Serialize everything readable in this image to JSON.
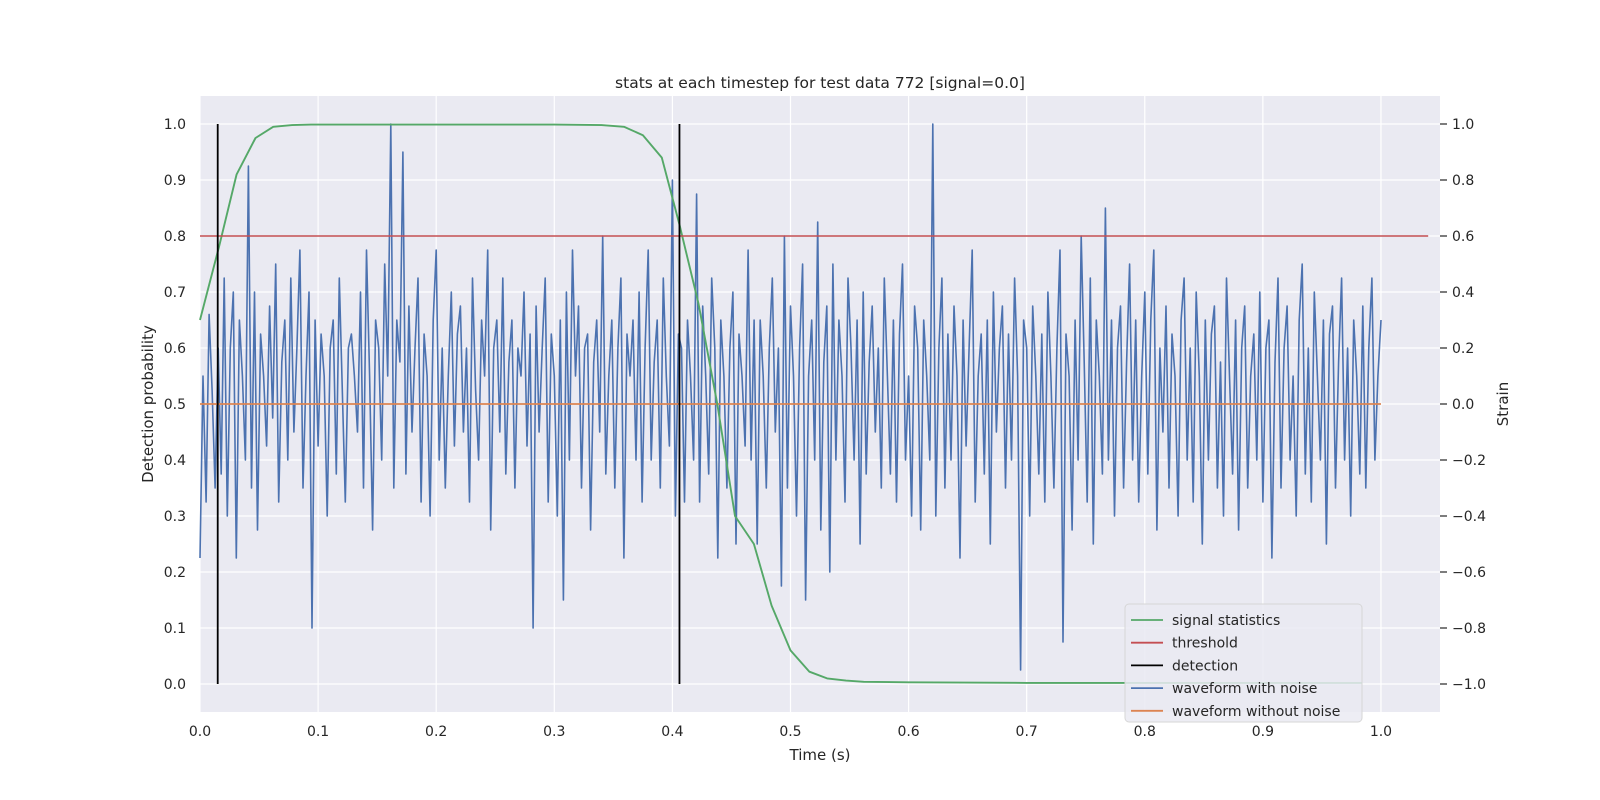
{
  "chart_data": {
    "type": "line",
    "title": "stats at each timestep for test data 772 [signal=0.0]",
    "xlabel": "Time (s)",
    "ylabel_left": "Detection probability",
    "ylabel_right": "Strain",
    "xlim": [
      0.0,
      1.05
    ],
    "ylim_left": [
      -0.05,
      1.05
    ],
    "ylim_right": [
      -1.1,
      1.1
    ],
    "x_ticks": [
      "0.0",
      "0.1",
      "0.2",
      "0.3",
      "0.4",
      "0.5",
      "0.6",
      "0.7",
      "0.8",
      "0.9",
      "1.0"
    ],
    "y_ticks_left": [
      "0.0",
      "0.1",
      "0.2",
      "0.3",
      "0.4",
      "0.5",
      "0.6",
      "0.7",
      "0.8",
      "0.9",
      "1.0"
    ],
    "y_ticks_right": [
      "−1.0",
      "−0.8",
      "−0.6",
      "−0.4",
      "−0.2",
      "0.0",
      "0.2",
      "0.4",
      "0.6",
      "0.8",
      "1.0"
    ],
    "grid": true,
    "legend_position": "lower-right",
    "colors": {
      "signal_statistics": "#55a868",
      "threshold": "#c44e52",
      "detection": "#000000",
      "waveform_with_noise": "#4c72b0",
      "waveform_without_noise": "#dd8452",
      "plot_background": "#eaeaf2",
      "grid": "#ffffff"
    },
    "series": [
      {
        "name": "signal statistics",
        "axis": "left",
        "x": [
          0.0,
          0.016,
          0.031,
          0.047,
          0.062,
          0.078,
          0.094,
          0.109,
          0.125,
          0.15,
          0.2,
          0.25,
          0.3,
          0.34,
          0.359,
          0.375,
          0.391,
          0.406,
          0.422,
          0.438,
          0.453,
          0.469,
          0.484,
          0.5,
          0.516,
          0.531,
          0.547,
          0.562,
          0.6,
          0.7,
          0.8,
          0.9,
          0.984
        ],
        "values": [
          0.65,
          0.78,
          0.91,
          0.975,
          0.995,
          0.998,
          0.999,
          0.999,
          0.999,
          0.999,
          0.999,
          0.999,
          0.999,
          0.998,
          0.995,
          0.98,
          0.94,
          0.82,
          0.68,
          0.5,
          0.3,
          0.25,
          0.14,
          0.06,
          0.022,
          0.01,
          0.006,
          0.004,
          0.003,
          0.002,
          0.002,
          0.002,
          0.002
        ]
      },
      {
        "name": "threshold",
        "axis": "left",
        "x": [
          0.0,
          1.04
        ],
        "values": [
          0.8,
          0.8
        ]
      },
      {
        "name": "detection",
        "axis": "left",
        "x": [
          0.015,
          0.406
        ],
        "values": [
          1.0,
          1.0
        ]
      },
      {
        "name": "waveform with noise",
        "axis": "right",
        "x_range": [
          0.0,
          1.0
        ],
        "values": [
          -0.55,
          0.1,
          -0.35,
          0.32,
          0.05,
          -0.3,
          0.2,
          -0.25,
          0.45,
          -0.4,
          0.2,
          0.4,
          -0.55,
          0.3,
          0.1,
          -0.2,
          0.85,
          -0.3,
          0.4,
          -0.45,
          0.25,
          0.1,
          -0.15,
          0.35,
          -0.05,
          0.5,
          -0.35,
          0.15,
          0.3,
          -0.2,
          0.45,
          -0.1,
          0.2,
          0.55,
          -0.3,
          0.1,
          0.4,
          -0.8,
          0.3,
          -0.15,
          0.25,
          0.1,
          -0.4,
          0.2,
          0.3,
          -0.25,
          0.45,
          0.05,
          -0.35,
          0.2,
          0.25,
          0.1,
          -0.1,
          0.4,
          -0.3,
          0.55,
          0.1,
          -0.45,
          0.3,
          0.2,
          -0.2,
          0.5,
          0.1,
          1.0,
          -0.3,
          0.3,
          0.15,
          0.9,
          -0.25,
          0.35,
          -0.1,
          0.2,
          0.45,
          -0.35,
          0.25,
          0.1,
          -0.4,
          0.3,
          0.55,
          -0.2,
          0.2,
          -0.3,
          0.1,
          0.4,
          -0.15,
          0.25,
          0.35,
          -0.1,
          0.2,
          -0.35,
          0.45,
          0.05,
          -0.2,
          0.3,
          0.1,
          0.55,
          -0.45,
          0.2,
          0.3,
          -0.1,
          0.45,
          -0.25,
          0.15,
          0.3,
          -0.3,
          0.2,
          0.1,
          0.4,
          -0.15,
          0.25,
          -0.8,
          0.35,
          -0.1,
          0.2,
          0.45,
          -0.35,
          0.25,
          0.1,
          -0.4,
          0.3,
          -0.7,
          0.4,
          -0.2,
          0.55,
          0.1,
          0.35,
          -0.3,
          0.2,
          0.25,
          -0.45,
          0.15,
          0.3,
          -0.1,
          0.6,
          -0.25,
          0.1,
          0.3,
          -0.3,
          0.2,
          0.45,
          -0.55,
          0.25,
          0.1,
          0.3,
          -0.2,
          0.4,
          -0.35,
          0.2,
          0.55,
          -0.2,
          0.15,
          0.3,
          -0.3,
          0.45,
          0.1,
          -0.15,
          0.8,
          -0.4,
          0.25,
          0.2,
          -0.35,
          0.3,
          0.1,
          -0.2,
          0.75,
          -0.35,
          0.35,
          0.1,
          -0.25,
          0.45,
          0.2,
          -0.55,
          0.3,
          0.1,
          -0.3,
          0.2,
          0.4,
          -0.5,
          0.25,
          0.1,
          -0.15,
          0.55,
          -0.2,
          0.3,
          -0.5,
          0.3,
          0.1,
          -0.3,
          0.2,
          0.45,
          -0.1,
          0.2,
          -0.65,
          0.6,
          -0.3,
          0.35,
          0.1,
          -0.4,
          0.2,
          0.5,
          -0.7,
          0.1,
          0.3,
          -0.2,
          0.65,
          -0.45,
          0.15,
          0.35,
          -0.6,
          0.5,
          -0.2,
          0.3,
          0.1,
          -0.35,
          0.45,
          0.2,
          -0.2,
          0.3,
          -0.5,
          0.4,
          -0.25,
          0.15,
          0.35,
          -0.1,
          0.2,
          -0.3,
          0.45,
          0.1,
          -0.25,
          0.3,
          -0.35,
          0.25,
          0.5,
          -0.2,
          0.1,
          -0.4,
          0.35,
          0.2,
          -0.45,
          0.3,
          0.1,
          -0.2,
          1.0,
          -0.4,
          0.2,
          0.45,
          -0.3,
          0.25,
          -0.2,
          0.35,
          0.1,
          -0.55,
          0.3,
          -0.15,
          0.2,
          0.55,
          -0.35,
          0.1,
          0.25,
          -0.25,
          0.3,
          -0.5,
          0.4,
          -0.1,
          0.2,
          0.35,
          -0.3,
          0.25,
          -0.2,
          0.45,
          0.1,
          -0.95,
          0.3,
          0.2,
          -0.4,
          0.35,
          0.1,
          -0.25,
          0.25,
          -0.35,
          0.4,
          0.1,
          -0.3,
          0.2,
          0.55,
          -0.85,
          0.25,
          0.1,
          -0.45,
          0.3,
          -0.2,
          0.6,
          0.15,
          -0.35,
          0.45,
          -0.5,
          0.3,
          0.1,
          -0.25,
          0.7,
          -0.2,
          0.3,
          -0.4,
          0.2,
          0.35,
          -0.3,
          0.15,
          0.5,
          -0.2,
          0.3,
          -0.35,
          0.1,
          0.4,
          -0.25,
          0.3,
          0.55,
          -0.45,
          0.2,
          -0.1,
          0.35,
          -0.3,
          0.25,
          0.1,
          -0.4,
          0.3,
          0.45,
          -0.2,
          0.2,
          -0.35,
          0.4,
          0.1,
          -0.5,
          0.3,
          -0.2,
          0.25,
          0.35,
          -0.3,
          0.15,
          -0.4,
          0.45,
          0.1,
          -0.25,
          0.3,
          -0.45,
          0.2,
          0.35,
          -0.3,
          0.1,
          0.25,
          -0.2,
          0.4,
          -0.35,
          0.2,
          0.3,
          -0.55,
          0.15,
          0.45,
          -0.3,
          0.2,
          0.35,
          -0.2,
          0.1,
          -0.4,
          0.3,
          0.5,
          -0.25,
          0.2,
          -0.35,
          0.4,
          0.1,
          -0.2,
          0.3,
          -0.5,
          0.25,
          0.35,
          -0.3,
          0.15,
          0.45,
          -0.2,
          0.2,
          -0.4,
          0.3,
          0.1,
          -0.25,
          0.35,
          -0.3,
          0.2,
          0.45,
          -0.2,
          0.1,
          0.3
        ],
        "summary": "noisy strain waveform fluctuating mostly between -0.6 and 0.6 with spikes reaching 1.0 and -1.0"
      },
      {
        "name": "waveform without noise",
        "axis": "right",
        "x": [
          0.0,
          1.0
        ],
        "values": [
          0.0,
          0.0
        ]
      }
    ]
  }
}
